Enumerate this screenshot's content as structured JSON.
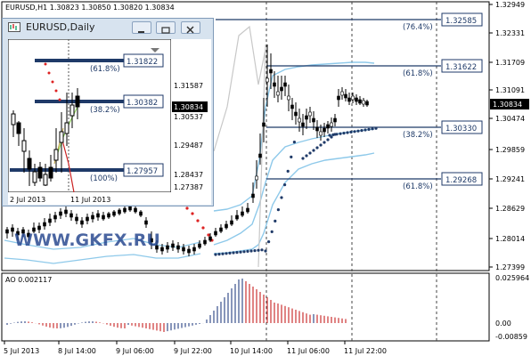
{
  "main_chart": {
    "header": "EURUSD,H1  1.30823 1.30850 1.30820 1.30834",
    "price_axis": [
      "1.32949",
      "1.32331",
      "1.31709",
      "1.31091",
      "1.30474",
      "1.29859",
      "1.29241",
      "1.28629",
      "1.28014",
      "1.27399"
    ],
    "current_price": "1.30834",
    "fibonacci": [
      {
        "pct": "(76.4%)",
        "value": "1.32585"
      },
      {
        "pct": "(61.8%)",
        "value": "1.31622"
      },
      {
        "pct": "(38.2%)",
        "value": "1.30330"
      },
      {
        "pct": "(61.8%)",
        "value": "1.29268"
      }
    ],
    "time_axis": [
      "5 Jul 2013",
      "8 Jul 14:00",
      "9 Jul 06:00",
      "9 Jul 22:00",
      "10 Jul 14:00",
      "11 Jul 06:00",
      "11 Jul 22:00"
    ],
    "watermark": "WWW.GKFX.RU"
  },
  "indicator": {
    "label": "AO 0.002117",
    "axis": [
      "0.025964",
      "0.00",
      "-0.00859"
    ]
  },
  "daily_window": {
    "title": "EURUSD,Daily",
    "price_axis": [
      "1.31587",
      "1.30537",
      "1.29487",
      "1.28437",
      "1.27387"
    ],
    "current_price": "1.30834",
    "fibonacci": [
      {
        "pct": "(61.8%)",
        "value": "1.31822"
      },
      {
        "pct": "(38.2%)",
        "value": "1.30382"
      },
      {
        "pct": "(100%)",
        "value": "1.27957"
      }
    ],
    "time_axis": [
      "2 Jul 2013",
      "11 Jul 2013"
    ]
  },
  "colors": {
    "bb_band": "#8ec9ea",
    "fib_line": "#1f3a68",
    "ao_up": "#3a4f8c",
    "ao_down": "#cc3333",
    "sar_up": "#1f3a68",
    "sar_down": "#dd2222"
  },
  "icons": [
    "chart-window-icon",
    "minimize-icon",
    "restore-icon",
    "close-icon"
  ]
}
